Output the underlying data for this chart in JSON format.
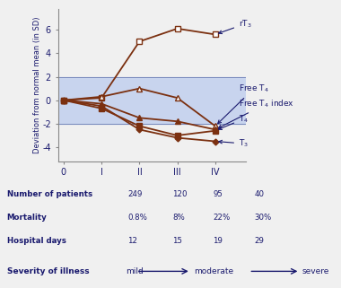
{
  "x_labels": [
    "0",
    "I",
    "II",
    "III",
    "IV"
  ],
  "x_vals": [
    0,
    1,
    2,
    3,
    4
  ],
  "rT3_y": [
    0,
    0.2,
    5.0,
    6.1,
    5.6
  ],
  "FreeT4_y": [
    0,
    0.3,
    1.0,
    0.2,
    -2.2
  ],
  "FreeT4index_y": [
    0,
    -0.3,
    -1.5,
    -1.8,
    -2.5
  ],
  "T4_y": [
    0,
    -0.7,
    -2.2,
    -3.0,
    -2.6
  ],
  "T3_y": [
    0,
    -0.5,
    -2.5,
    -3.2,
    -3.5
  ],
  "line_color": "#7B3010",
  "text_color": "#1a1a6e",
  "shaded_color": "#c8d4ee",
  "bg_color": "#f0f0f0",
  "ylabel": "Deviation from normal mean (in SD)",
  "ylim": [
    -5.2,
    7.8
  ],
  "yticks": [
    -4,
    -2,
    0,
    2,
    4,
    6
  ],
  "xlim": [
    -0.15,
    4.8
  ],
  "table_rows": [
    [
      "Number of patients",
      "249",
      "120",
      "95",
      "40"
    ],
    [
      "Mortality",
      "0.8%",
      "8%",
      "22%",
      "30%"
    ],
    [
      "Hospital days",
      "12",
      "15",
      "19",
      "29"
    ]
  ]
}
